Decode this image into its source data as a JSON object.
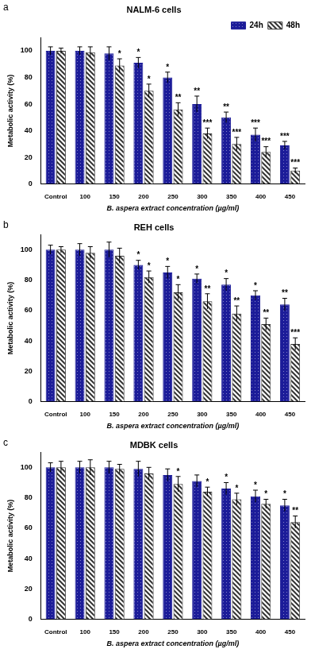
{
  "chart_data": [
    {
      "type": "bar",
      "panel": "a",
      "title": "NALM-6 cells",
      "x_label": "B. aspera extract concentration (µg/ml)",
      "y_label": "Metabolic activity (%)",
      "categories": [
        "Control",
        "100",
        "150",
        "200",
        "250",
        "300",
        "350",
        "400",
        "450"
      ],
      "series": [
        {
          "name": "24h",
          "color": "#1c1c99",
          "values": [
            100,
            100,
            98,
            91,
            80,
            60,
            50,
            37,
            29
          ],
          "errors": [
            3,
            3,
            5,
            4,
            4,
            6,
            4,
            5,
            3
          ],
          "significance": [
            null,
            null,
            null,
            "*",
            "*",
            "**",
            "**",
            "***",
            "***"
          ]
        },
        {
          "name": "48h",
          "color": "#333333",
          "values": [
            100,
            99,
            89,
            70,
            56,
            38,
            30,
            24,
            10
          ],
          "errors": [
            2,
            4,
            5,
            5,
            5,
            4,
            5,
            4,
            2
          ],
          "significance": [
            null,
            null,
            "*",
            "*",
            "**",
            "***",
            "***",
            "***",
            "***"
          ]
        }
      ],
      "ylim": [
        0,
        110
      ],
      "yticks": [
        0,
        20,
        40,
        60,
        80,
        100
      ],
      "grid": false,
      "legend": "top-right"
    },
    {
      "type": "bar",
      "panel": "b",
      "title": "REH cells",
      "x_label": "B. aspera extract concentration (µg/ml)",
      "y_label": "Metabolic activity (%)",
      "categories": [
        "Control",
        "100",
        "150",
        "200",
        "250",
        "300",
        "350",
        "400",
        "450"
      ],
      "series": [
        {
          "name": "24h",
          "color": "#1c1c99",
          "values": [
            100,
            100,
            100,
            90,
            85,
            81,
            77,
            70,
            64
          ],
          "errors": [
            3,
            4,
            5,
            3,
            4,
            3,
            4,
            3,
            4
          ],
          "significance": [
            null,
            null,
            null,
            "*",
            "*",
            "*",
            "*",
            "*",
            "**"
          ]
        },
        {
          "name": "48h",
          "color": "#333333",
          "values": [
            100,
            98,
            96,
            82,
            72,
            66,
            58,
            51,
            38
          ],
          "errors": [
            2,
            4,
            5,
            4,
            5,
            5,
            5,
            4,
            4
          ],
          "significance": [
            null,
            null,
            null,
            "*",
            "*",
            "**",
            "**",
            "**",
            "***"
          ]
        }
      ],
      "ylim": [
        0,
        110
      ],
      "yticks": [
        0,
        20,
        40,
        60,
        80,
        100
      ],
      "grid": false
    },
    {
      "type": "bar",
      "panel": "c",
      "title": "MDBK cells",
      "x_label": "B. aspera extract concentration (µg/ml)",
      "y_label": "Metabolic activity (%)",
      "categories": [
        "Control",
        "100",
        "150",
        "200",
        "250",
        "300",
        "350",
        "400",
        "450"
      ],
      "series": [
        {
          "name": "24h",
          "color": "#1c1c99",
          "values": [
            100,
            100,
            100,
            99,
            95,
            91,
            86,
            81,
            75
          ],
          "errors": [
            3,
            4,
            4,
            5,
            4,
            4,
            4,
            4,
            4
          ],
          "significance": [
            null,
            null,
            null,
            null,
            null,
            null,
            "*",
            "*",
            "*"
          ]
        },
        {
          "name": "48h",
          "color": "#333333",
          "values": [
            100,
            100,
            99,
            96,
            89,
            84,
            79,
            76,
            64
          ],
          "errors": [
            4,
            5,
            3,
            4,
            5,
            3,
            4,
            3,
            4
          ],
          "significance": [
            null,
            null,
            null,
            null,
            "*",
            "*",
            "*",
            "*",
            "**"
          ]
        }
      ],
      "ylim": [
        0,
        110
      ],
      "yticks": [
        0,
        20,
        40,
        60,
        80,
        100
      ],
      "grid": false
    }
  ]
}
